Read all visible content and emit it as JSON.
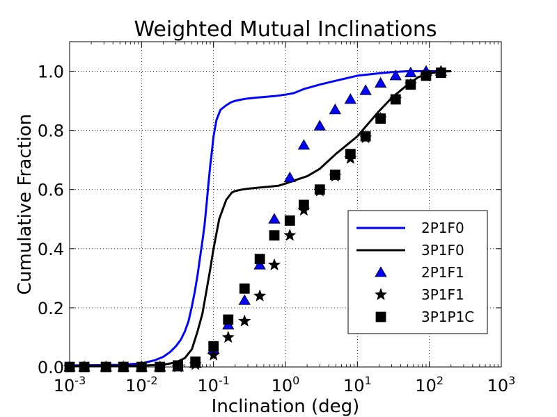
{
  "chart_data": {
    "type": "line",
    "title": "Weighted Mutual Inclinations",
    "xlabel": "Inclination (deg)",
    "ylabel": "Cumulative Fraction",
    "xscale": "log",
    "xlim": [
      0.001,
      1000
    ],
    "ylim": [
      0,
      1.1
    ],
    "grid": true,
    "legend_position": "lower-right",
    "x_ticks": [
      {
        "base": "10",
        "exp": "-3"
      },
      {
        "base": "10",
        "exp": "-2"
      },
      {
        "base": "10",
        "exp": "-1"
      },
      {
        "base": "10",
        "exp": "0"
      },
      {
        "base": "10",
        "exp": "1"
      },
      {
        "base": "10",
        "exp": "2"
      },
      {
        "base": "10",
        "exp": "3"
      }
    ],
    "y_ticks": [
      "0.0",
      "0.2",
      "0.4",
      "0.6",
      "0.8",
      "1.0"
    ],
    "series": [
      {
        "name": "2P1F0",
        "kind": "line",
        "color": "#0000ff",
        "x": [
          0.001,
          0.005,
          0.01,
          0.015,
          0.02,
          0.025,
          0.03,
          0.035,
          0.04,
          0.045,
          0.05,
          0.055,
          0.06,
          0.065,
          0.07,
          0.075,
          0.08,
          0.085,
          0.09,
          0.095,
          0.1,
          0.11,
          0.125,
          0.15,
          0.175,
          0.2,
          0.25,
          0.3,
          0.4,
          0.5,
          0.7,
          1.0,
          1.3,
          1.5,
          1.8,
          2,
          3,
          5,
          10,
          20,
          30,
          50,
          100,
          200
        ],
        "y": [
          0.005,
          0.007,
          0.012,
          0.022,
          0.034,
          0.051,
          0.07,
          0.092,
          0.12,
          0.155,
          0.205,
          0.255,
          0.31,
          0.37,
          0.425,
          0.48,
          0.55,
          0.62,
          0.68,
          0.73,
          0.78,
          0.835,
          0.87,
          0.885,
          0.895,
          0.9,
          0.905,
          0.908,
          0.911,
          0.913,
          0.916,
          0.921,
          0.926,
          0.932,
          0.94,
          0.943,
          0.955,
          0.968,
          0.985,
          0.993,
          0.997,
          1.0,
          1.0,
          1.0
        ]
      },
      {
        "name": "3P1F0",
        "kind": "line",
        "color": "#000000",
        "x": [
          0.001,
          0.01,
          0.02,
          0.03,
          0.04,
          0.05,
          0.06,
          0.07,
          0.08,
          0.09,
          0.1,
          0.12,
          0.15,
          0.18,
          0.2,
          0.25,
          0.3,
          0.5,
          0.8,
          1.0,
          1.5,
          2,
          3,
          5,
          10,
          15,
          20,
          30,
          50,
          70,
          100,
          150,
          200
        ],
        "y": [
          0.003,
          0.004,
          0.008,
          0.015,
          0.03,
          0.06,
          0.12,
          0.18,
          0.26,
          0.33,
          0.4,
          0.5,
          0.565,
          0.59,
          0.595,
          0.6,
          0.603,
          0.608,
          0.613,
          0.62,
          0.635,
          0.645,
          0.67,
          0.72,
          0.78,
          0.83,
          0.865,
          0.91,
          0.955,
          0.98,
          0.993,
          0.999,
          1.0
        ]
      },
      {
        "name": "2P1F1",
        "kind": "marker",
        "marker": "triangle",
        "color": "#0000ff",
        "x": [
          0.001,
          0.0016,
          0.0032,
          0.0056,
          0.01,
          0.018,
          0.032,
          0.056,
          0.1,
          0.16,
          0.27,
          0.44,
          0.7,
          1.15,
          1.8,
          3.0,
          4.9,
          8.0,
          13,
          21,
          34,
          55,
          90,
          145
        ],
        "y": [
          0.0,
          0.0,
          0.0,
          0.0,
          0.0,
          0.0,
          0.0,
          0.012,
          0.06,
          0.142,
          0.225,
          0.345,
          0.5,
          0.64,
          0.75,
          0.815,
          0.87,
          0.905,
          0.935,
          0.96,
          0.985,
          0.995,
          1.0,
          1.0
        ]
      },
      {
        "name": "3P1F1",
        "kind": "marker",
        "marker": "star",
        "color": "#000000",
        "x": [
          0.001,
          0.0016,
          0.0032,
          0.0056,
          0.01,
          0.018,
          0.032,
          0.056,
          0.1,
          0.16,
          0.27,
          0.44,
          0.7,
          1.15,
          1.8,
          3.0,
          4.9,
          8.0,
          13,
          21,
          34,
          55,
          90,
          145
        ],
        "y": [
          0.0,
          0.0,
          0.0,
          0.0,
          0.0,
          0.0,
          0.0,
          0.008,
          0.04,
          0.1,
          0.155,
          0.24,
          0.345,
          0.445,
          0.53,
          0.595,
          0.645,
          0.705,
          0.775,
          0.84,
          0.905,
          0.955,
          0.985,
          0.995
        ]
      },
      {
        "name": "3P1P1C",
        "kind": "marker",
        "marker": "square",
        "color": "#000000",
        "x": [
          0.001,
          0.0016,
          0.0032,
          0.0056,
          0.01,
          0.018,
          0.032,
          0.056,
          0.1,
          0.16,
          0.27,
          0.44,
          0.7,
          1.15,
          1.8,
          3.0,
          4.9,
          8.0,
          13,
          21,
          34,
          55,
          90,
          145
        ],
        "y": [
          0.0,
          0.0,
          0.0,
          0.0,
          0.0,
          0.0,
          0.005,
          0.018,
          0.07,
          0.16,
          0.265,
          0.365,
          0.445,
          0.495,
          0.548,
          0.6,
          0.65,
          0.72,
          0.78,
          0.84,
          0.905,
          0.955,
          0.985,
          0.995
        ]
      }
    ]
  }
}
